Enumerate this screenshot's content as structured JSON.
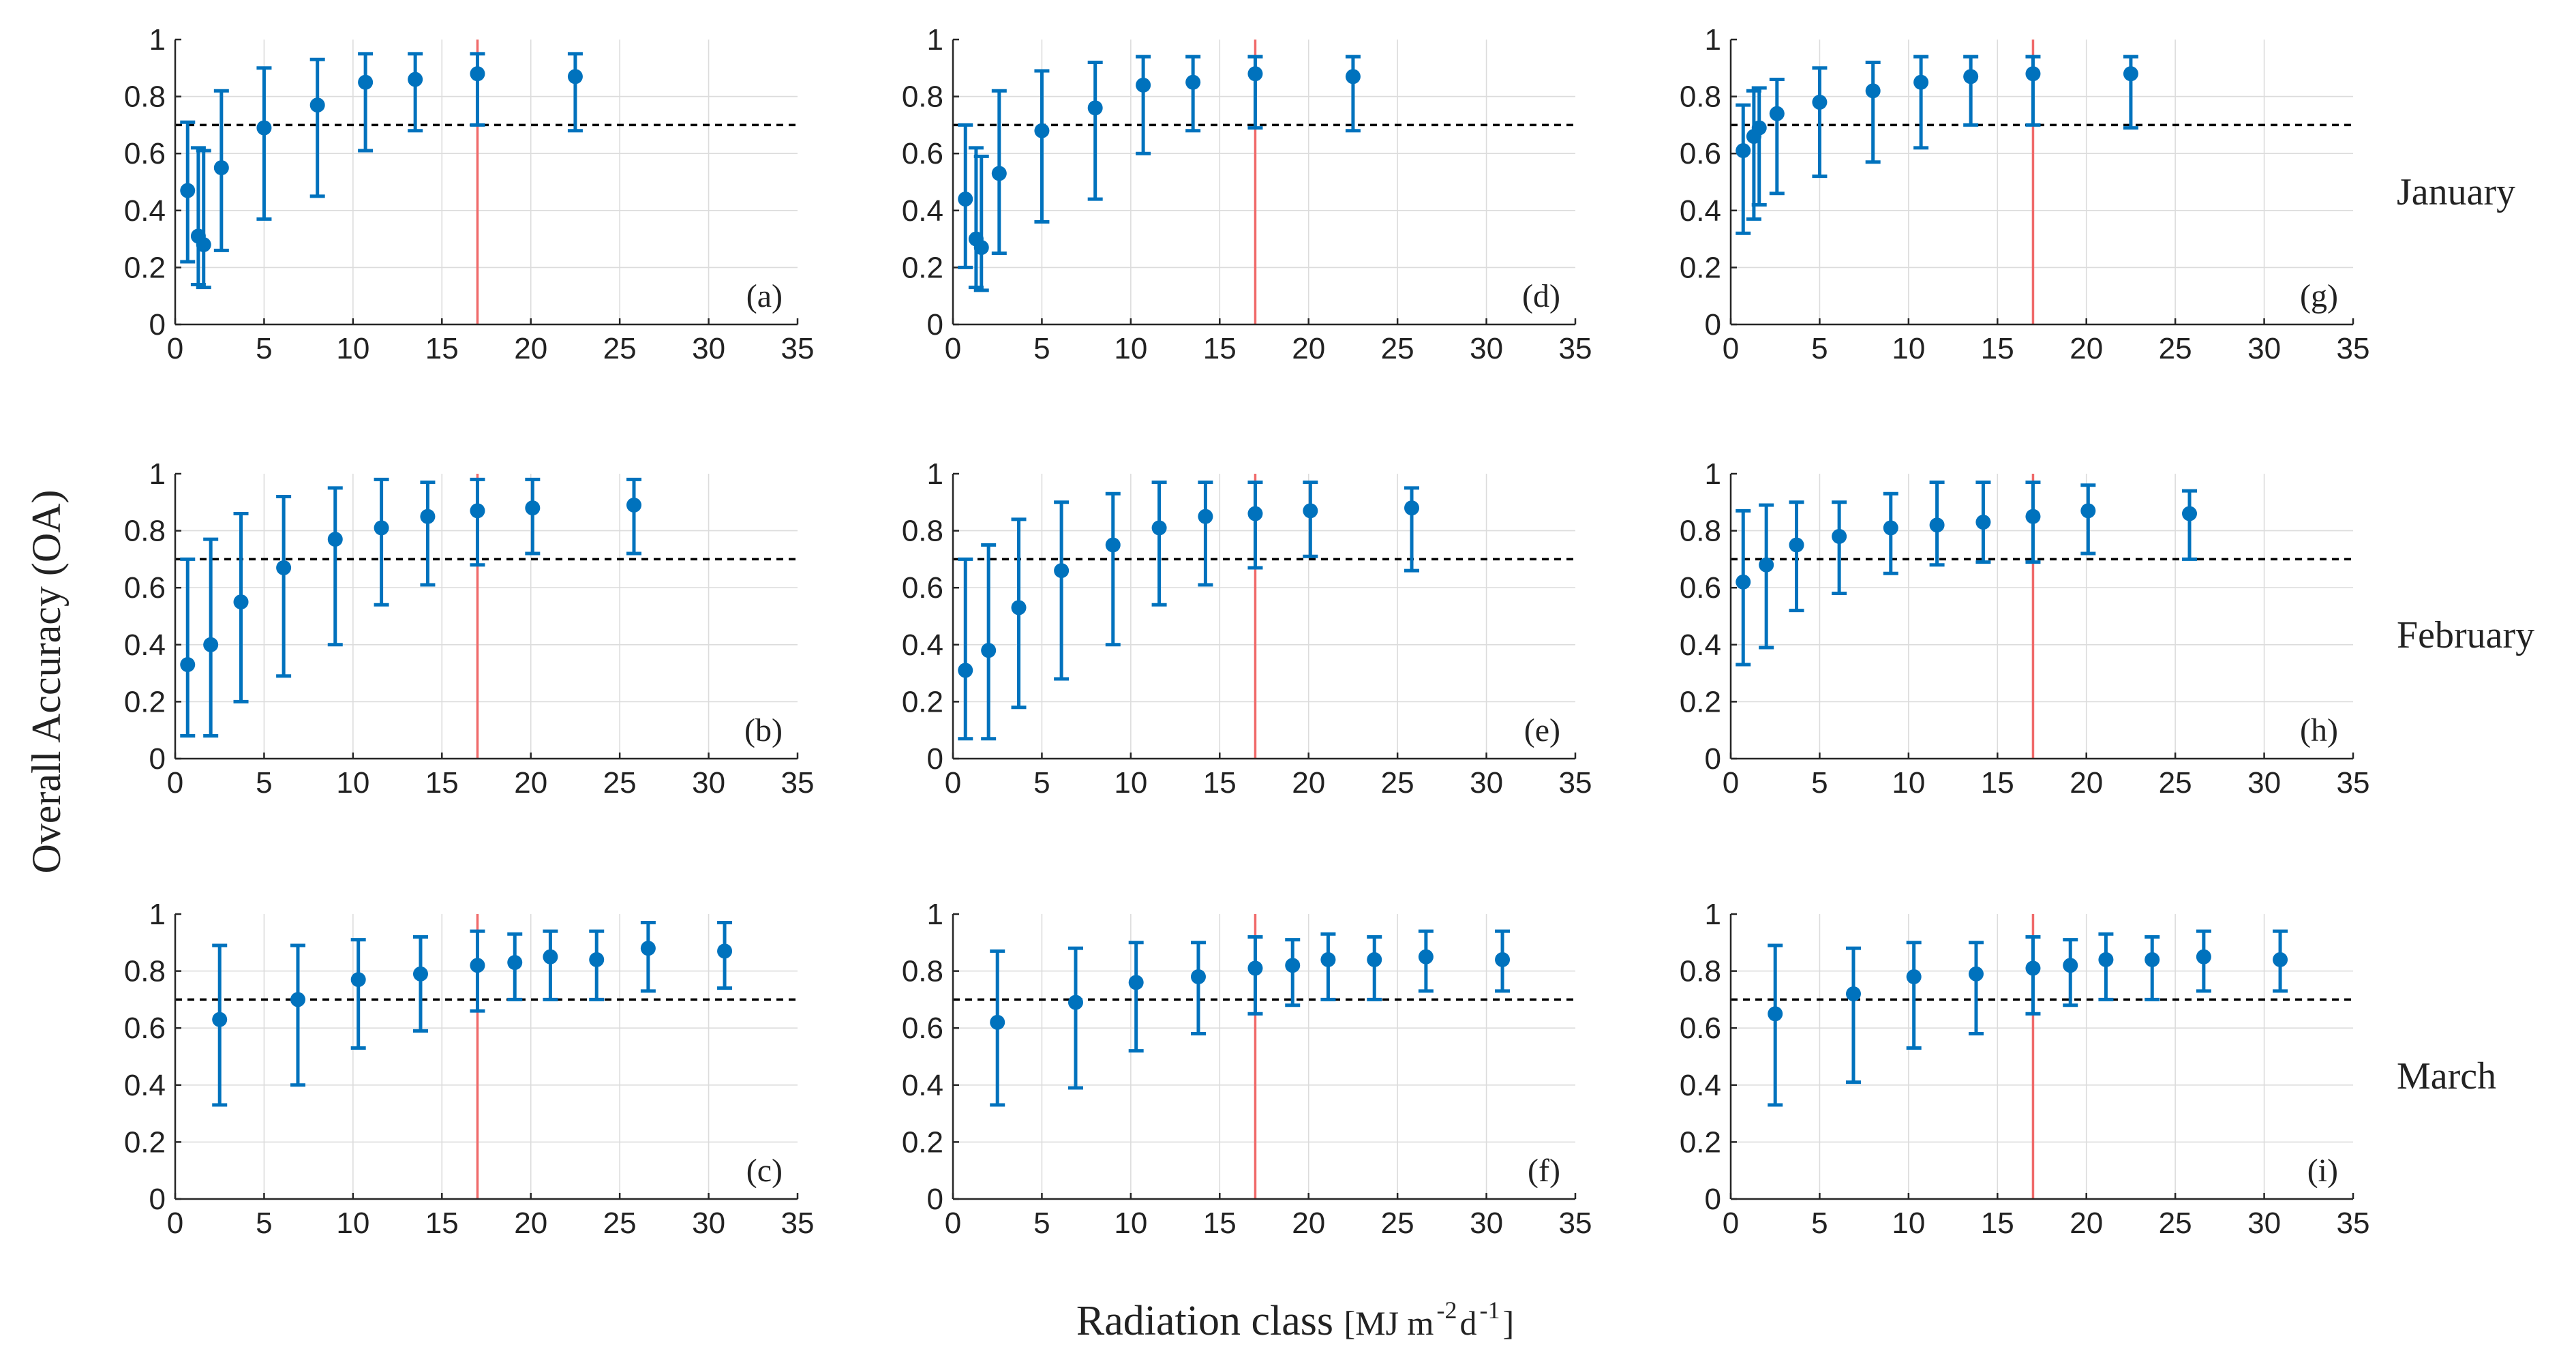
{
  "figure": {
    "ylabel": "Overall Accuracy (OA)",
    "xlabel_main": "Radiation class ",
    "xlabel_units_prefix": "[MJ m",
    "xlabel_exp1": "-2",
    "xlabel_units_mid": " d",
    "xlabel_exp2": "-1",
    "xlabel_units_suffix": "]",
    "row_labels": [
      "January",
      "February",
      "March"
    ],
    "colors": {
      "marker": "#0072bd",
      "vline": "#f06a6a",
      "threshold": "#000000"
    }
  },
  "chart_data": [
    {
      "id": "a",
      "label": "(a)",
      "row": 0,
      "col": 0,
      "type": "scatter",
      "xlim": [
        0,
        35
      ],
      "ylim": [
        0,
        1
      ],
      "xticks": [
        0,
        5,
        10,
        15,
        20,
        25,
        30,
        35
      ],
      "yticks": [
        0,
        0.2,
        0.4,
        0.6,
        0.8,
        1
      ],
      "threshold": 0.7,
      "vline": 17,
      "x": [
        0.7,
        1.3,
        1.6,
        2.6,
        5.0,
        8.0,
        10.7,
        13.5,
        17.0,
        22.5
      ],
      "y": [
        0.47,
        0.31,
        0.28,
        0.55,
        0.69,
        0.77,
        0.85,
        0.86,
        0.88,
        0.87
      ],
      "lo": [
        0.22,
        0.14,
        0.13,
        0.26,
        0.37,
        0.45,
        0.61,
        0.68,
        0.7,
        0.68
      ],
      "hi": [
        0.71,
        0.62,
        0.61,
        0.82,
        0.9,
        0.93,
        0.95,
        0.95,
        0.95,
        0.95
      ]
    },
    {
      "id": "b",
      "label": "(b)",
      "row": 1,
      "col": 0,
      "type": "scatter",
      "xlim": [
        0,
        35
      ],
      "ylim": [
        0,
        1
      ],
      "xticks": [
        0,
        5,
        10,
        15,
        20,
        25,
        30,
        35
      ],
      "yticks": [
        0,
        0.2,
        0.4,
        0.6,
        0.8,
        1
      ],
      "threshold": 0.7,
      "vline": 17,
      "x": [
        0.7,
        2.0,
        3.7,
        6.1,
        9.0,
        11.6,
        14.2,
        17.0,
        20.1,
        25.8
      ],
      "y": [
        0.33,
        0.4,
        0.55,
        0.67,
        0.77,
        0.81,
        0.85,
        0.87,
        0.88,
        0.89
      ],
      "lo": [
        0.08,
        0.08,
        0.2,
        0.29,
        0.4,
        0.54,
        0.61,
        0.68,
        0.72,
        0.72
      ],
      "hi": [
        0.7,
        0.77,
        0.86,
        0.92,
        0.95,
        0.98,
        0.97,
        0.98,
        0.98,
        0.98
      ]
    },
    {
      "id": "c",
      "label": "(c)",
      "row": 2,
      "col": 0,
      "type": "scatter",
      "xlim": [
        0,
        35
      ],
      "ylim": [
        0,
        1
      ],
      "xticks": [
        0,
        5,
        10,
        15,
        20,
        25,
        30,
        35
      ],
      "yticks": [
        0,
        0.2,
        0.4,
        0.6,
        0.8,
        1
      ],
      "threshold": 0.7,
      "vline": 17,
      "x": [
        2.5,
        6.9,
        10.3,
        13.8,
        17.0,
        19.1,
        21.1,
        23.7,
        26.6,
        30.9
      ],
      "y": [
        0.63,
        0.7,
        0.77,
        0.79,
        0.82,
        0.83,
        0.85,
        0.84,
        0.88,
        0.87
      ],
      "lo": [
        0.33,
        0.4,
        0.53,
        0.59,
        0.66,
        0.7,
        0.7,
        0.7,
        0.73,
        0.74
      ],
      "hi": [
        0.89,
        0.89,
        0.91,
        0.92,
        0.94,
        0.93,
        0.94,
        0.94,
        0.97,
        0.97
      ]
    },
    {
      "id": "d",
      "label": "(d)",
      "row": 0,
      "col": 1,
      "type": "scatter",
      "xlim": [
        0,
        35
      ],
      "ylim": [
        0,
        1
      ],
      "xticks": [
        0,
        5,
        10,
        15,
        20,
        25,
        30,
        35
      ],
      "yticks": [
        0,
        0.2,
        0.4,
        0.6,
        0.8,
        1
      ],
      "threshold": 0.7,
      "vline": 17,
      "x": [
        0.7,
        1.3,
        1.6,
        2.6,
        5.0,
        8.0,
        10.7,
        13.5,
        17.0,
        22.5
      ],
      "y": [
        0.44,
        0.3,
        0.27,
        0.53,
        0.68,
        0.76,
        0.84,
        0.85,
        0.88,
        0.87
      ],
      "lo": [
        0.2,
        0.13,
        0.12,
        0.25,
        0.36,
        0.44,
        0.6,
        0.68,
        0.69,
        0.68
      ],
      "hi": [
        0.7,
        0.62,
        0.59,
        0.82,
        0.89,
        0.92,
        0.94,
        0.94,
        0.94,
        0.94
      ]
    },
    {
      "id": "e",
      "label": "(e)",
      "row": 1,
      "col": 1,
      "type": "scatter",
      "xlim": [
        0,
        35
      ],
      "ylim": [
        0,
        1
      ],
      "xticks": [
        0,
        5,
        10,
        15,
        20,
        25,
        30,
        35
      ],
      "yticks": [
        0,
        0.2,
        0.4,
        0.6,
        0.8,
        1
      ],
      "threshold": 0.7,
      "vline": 17,
      "x": [
        0.7,
        2.0,
        3.7,
        6.1,
        9.0,
        11.6,
        14.2,
        17.0,
        20.1,
        25.8
      ],
      "y": [
        0.31,
        0.38,
        0.53,
        0.66,
        0.75,
        0.81,
        0.85,
        0.86,
        0.87,
        0.88
      ],
      "lo": [
        0.07,
        0.07,
        0.18,
        0.28,
        0.4,
        0.54,
        0.61,
        0.67,
        0.71,
        0.66
      ],
      "hi": [
        0.7,
        0.75,
        0.84,
        0.9,
        0.93,
        0.97,
        0.97,
        0.97,
        0.97,
        0.95
      ]
    },
    {
      "id": "f",
      "label": "(f)",
      "row": 2,
      "col": 1,
      "type": "scatter",
      "xlim": [
        0,
        35
      ],
      "ylim": [
        0,
        1
      ],
      "xticks": [
        0,
        5,
        10,
        15,
        20,
        25,
        30,
        35
      ],
      "yticks": [
        0,
        0.2,
        0.4,
        0.6,
        0.8,
        1
      ],
      "threshold": 0.7,
      "vline": 17,
      "x": [
        2.5,
        6.9,
        10.3,
        13.8,
        17.0,
        19.1,
        21.1,
        23.7,
        26.6,
        30.9
      ],
      "y": [
        0.62,
        0.69,
        0.76,
        0.78,
        0.81,
        0.82,
        0.84,
        0.84,
        0.85,
        0.84
      ],
      "lo": [
        0.33,
        0.39,
        0.52,
        0.58,
        0.65,
        0.68,
        0.7,
        0.7,
        0.73,
        0.73
      ],
      "hi": [
        0.87,
        0.88,
        0.9,
        0.9,
        0.92,
        0.91,
        0.93,
        0.92,
        0.94,
        0.94
      ]
    },
    {
      "id": "g",
      "label": "(g)",
      "row": 0,
      "col": 2,
      "type": "scatter",
      "xlim": [
        0,
        35
      ],
      "ylim": [
        0,
        1
      ],
      "xticks": [
        0,
        5,
        10,
        15,
        20,
        25,
        30,
        35
      ],
      "yticks": [
        0,
        0.2,
        0.4,
        0.6,
        0.8,
        1
      ],
      "threshold": 0.7,
      "vline": 17,
      "x": [
        0.7,
        1.3,
        1.6,
        2.6,
        5.0,
        8.0,
        10.7,
        13.5,
        17.0,
        22.5
      ],
      "y": [
        0.61,
        0.66,
        0.69,
        0.74,
        0.78,
        0.82,
        0.85,
        0.87,
        0.88,
        0.88
      ],
      "lo": [
        0.32,
        0.37,
        0.42,
        0.46,
        0.52,
        0.57,
        0.62,
        0.7,
        0.7,
        0.69
      ],
      "hi": [
        0.77,
        0.82,
        0.83,
        0.86,
        0.9,
        0.92,
        0.94,
        0.94,
        0.94,
        0.94
      ]
    },
    {
      "id": "h",
      "label": "(h)",
      "row": 1,
      "col": 2,
      "type": "scatter",
      "xlim": [
        0,
        35
      ],
      "ylim": [
        0,
        1
      ],
      "xticks": [
        0,
        5,
        10,
        15,
        20,
        25,
        30,
        35
      ],
      "yticks": [
        0,
        0.2,
        0.4,
        0.6,
        0.8,
        1
      ],
      "threshold": 0.7,
      "vline": 17,
      "x": [
        0.7,
        2.0,
        3.7,
        6.1,
        9.0,
        11.6,
        14.2,
        17.0,
        20.1,
        25.8
      ],
      "y": [
        0.62,
        0.68,
        0.75,
        0.78,
        0.81,
        0.82,
        0.83,
        0.85,
        0.87,
        0.86
      ],
      "lo": [
        0.33,
        0.39,
        0.52,
        0.58,
        0.65,
        0.68,
        0.69,
        0.69,
        0.72,
        0.7
      ],
      "hi": [
        0.87,
        0.89,
        0.9,
        0.9,
        0.93,
        0.97,
        0.97,
        0.97,
        0.96,
        0.94
      ]
    },
    {
      "id": "i",
      "label": "(i)",
      "row": 2,
      "col": 2,
      "type": "scatter",
      "xlim": [
        0,
        35
      ],
      "ylim": [
        0,
        1
      ],
      "xticks": [
        0,
        5,
        10,
        15,
        20,
        25,
        30,
        35
      ],
      "yticks": [
        0,
        0.2,
        0.4,
        0.6,
        0.8,
        1
      ],
      "threshold": 0.7,
      "vline": 17,
      "x": [
        2.5,
        6.9,
        10.3,
        13.8,
        17.0,
        19.1,
        21.1,
        23.7,
        26.6,
        30.9
      ],
      "y": [
        0.65,
        0.72,
        0.78,
        0.79,
        0.81,
        0.82,
        0.84,
        0.84,
        0.85,
        0.84
      ],
      "lo": [
        0.33,
        0.41,
        0.53,
        0.58,
        0.65,
        0.68,
        0.7,
        0.7,
        0.73,
        0.73
      ],
      "hi": [
        0.89,
        0.88,
        0.9,
        0.9,
        0.92,
        0.91,
        0.93,
        0.92,
        0.94,
        0.94
      ]
    }
  ]
}
